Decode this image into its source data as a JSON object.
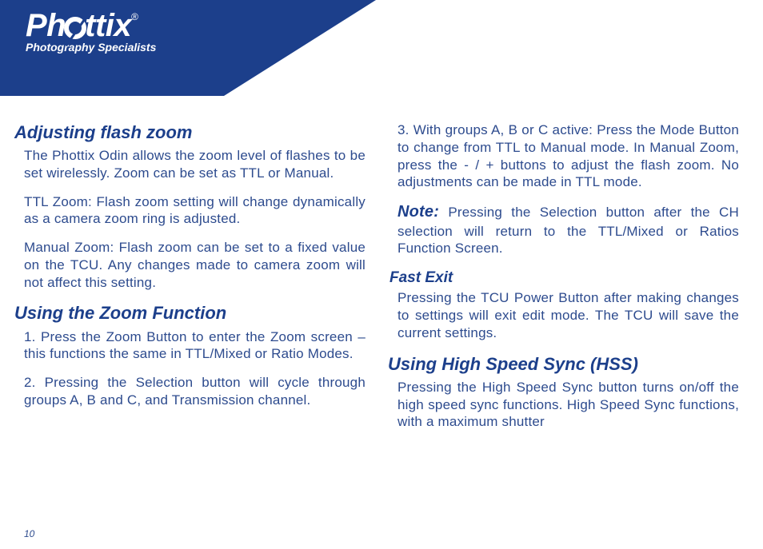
{
  "brand": {
    "name_left": "Ph",
    "name_right": "ttix",
    "reg": "®",
    "tagline": "Photography Specialists"
  },
  "colors": {
    "banner": "#1c3f8b",
    "heading": "#1c3f8b",
    "body": "#2d4b8e",
    "background": "#ffffff",
    "logo_text": "#ffffff"
  },
  "page_number": "10",
  "left": {
    "h1": "Adjusting flash zoom",
    "p1": "The Phottix Odin allows the zoom level of flashes to be set wirelessly. Zoom can be set as TTL or Manual.",
    "p2": "TTL Zoom: Flash zoom setting will change dynamically as a camera zoom ring is adjusted.",
    "p3": "Manual Zoom: Flash zoom can be set to a fixed value on the TCU. Any changes made to camera zoom will not affect this setting.",
    "h2": "Using the Zoom Function",
    "p4": "1. Press the Zoom Button to enter the Zoom screen – this functions the same in TTL/Mixed or Ratio Modes.",
    "p5": "2. Pressing the Selection button will cycle through groups A, B and C, and Transmission channel."
  },
  "right": {
    "p1": "3. With groups A, B or C active: Press the Mode Button to change from TTL to Manual mode. In Manual Zoom, press the - / + buttons to adjust the flash zoom. No adjustments can be made in TTL mode.",
    "note_label": "Note:",
    "note_body": " Pressing the Selection button after the CH selection will return to the TTL/Mixed or Ratios Function Screen.",
    "h1": "Fast Exit",
    "p2": "Pressing the TCU Power Button after making changes to settings will exit edit mode. The TCU will save the current settings.",
    "h2": "Using High Speed Sync (HSS)",
    "p3": "Pressing the High Speed Sync button turns on/off the high speed sync functions. High Speed Sync functions, with a maximum shutter"
  }
}
